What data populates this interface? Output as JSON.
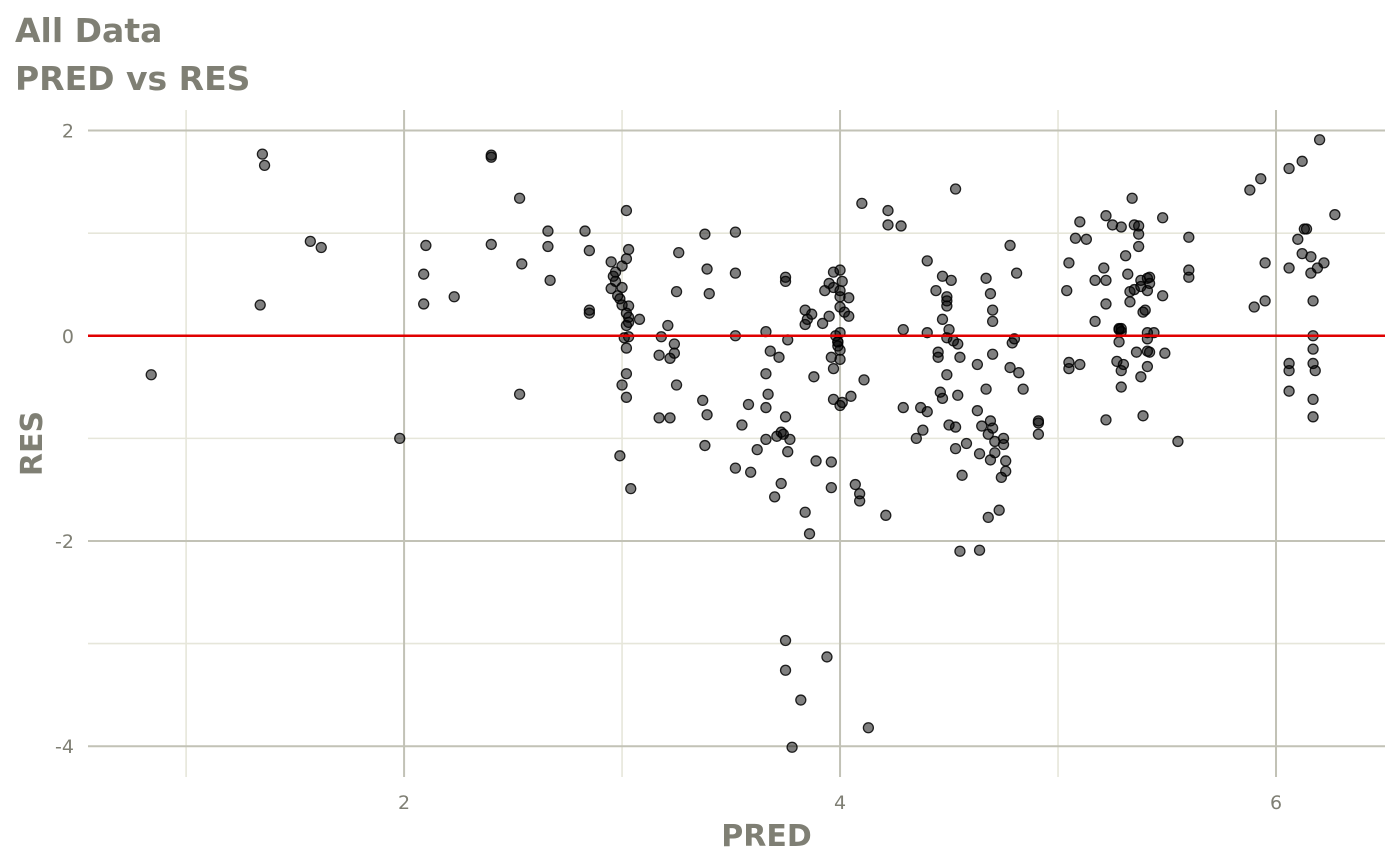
{
  "chart_data": {
    "type": "scatter",
    "title": "All Data",
    "subtitle": "PRED vs RES",
    "xlabel": "PRED",
    "ylabel": "RES",
    "xlim": [
      0.55,
      6.5
    ],
    "ylim": [
      -4.3,
      2.2
    ],
    "x_ticks": [
      2,
      4,
      6
    ],
    "x_tick_labels": [
      "2",
      "4",
      "6"
    ],
    "y_ticks": [
      -4,
      -2,
      0,
      2
    ],
    "y_tick_labels": [
      "-4",
      "-2",
      "0",
      "2"
    ],
    "grid": true,
    "reference_line": {
      "y": 0,
      "color": "#e00000"
    },
    "colors": {
      "point": "#000000",
      "grid_major": "#c2c2b6",
      "grid_minor": "#e6e6da",
      "text": "#7f7f74"
    },
    "points": [
      [
        0.84,
        -0.38
      ],
      [
        1.35,
        1.77
      ],
      [
        1.36,
        1.66
      ],
      [
        1.34,
        0.3
      ],
      [
        1.57,
        0.92
      ],
      [
        1.62,
        0.86
      ],
      [
        1.98,
        -1.0
      ],
      [
        2.09,
        0.6
      ],
      [
        2.1,
        0.88
      ],
      [
        2.09,
        0.31
      ],
      [
        2.23,
        0.38
      ],
      [
        2.4,
        1.76
      ],
      [
        2.4,
        1.74
      ],
      [
        2.4,
        0.89
      ],
      [
        2.53,
        1.34
      ],
      [
        2.53,
        -0.57
      ],
      [
        2.54,
        0.7
      ],
      [
        2.66,
        1.02
      ],
      [
        2.66,
        0.87
      ],
      [
        2.67,
        0.54
      ],
      [
        2.83,
        1.02
      ],
      [
        2.85,
        0.83
      ],
      [
        2.85,
        0.25
      ],
      [
        2.85,
        0.22
      ],
      [
        2.95,
        0.72
      ],
      [
        2.96,
        0.58
      ],
      [
        2.97,
        0.53
      ],
      [
        2.95,
        0.46
      ],
      [
        2.97,
        0.62
      ],
      [
        2.98,
        0.39
      ],
      [
        2.99,
        0.36
      ],
      [
        3.0,
        0.68
      ],
      [
        3.0,
        0.47
      ],
      [
        3.0,
        0.3
      ],
      [
        3.01,
        -0.02
      ],
      [
        3.0,
        -0.48
      ],
      [
        2.99,
        -1.17
      ],
      [
        3.02,
        1.22
      ],
      [
        3.03,
        0.84
      ],
      [
        3.02,
        0.75
      ],
      [
        3.03,
        0.29
      ],
      [
        3.02,
        0.22
      ],
      [
        3.03,
        0.18
      ],
      [
        3.03,
        0.13
      ],
      [
        3.02,
        0.1
      ],
      [
        3.03,
        -0.01
      ],
      [
        3.02,
        -0.12
      ],
      [
        3.02,
        -0.37
      ],
      [
        3.02,
        -0.6
      ],
      [
        3.04,
        -1.49
      ],
      [
        3.08,
        0.16
      ],
      [
        3.17,
        -0.19
      ],
      [
        3.18,
        -0.01
      ],
      [
        3.17,
        -0.8
      ],
      [
        3.21,
        0.1
      ],
      [
        3.22,
        -0.22
      ],
      [
        3.24,
        -0.17
      ],
      [
        3.24,
        -0.08
      ],
      [
        3.25,
        0.43
      ],
      [
        3.25,
        -0.48
      ],
      [
        3.26,
        0.81
      ],
      [
        3.22,
        -0.8
      ],
      [
        3.37,
        -0.63
      ],
      [
        3.38,
        0.99
      ],
      [
        3.39,
        0.65
      ],
      [
        3.4,
        0.41
      ],
      [
        3.39,
        -0.77
      ],
      [
        3.38,
        -1.07
      ],
      [
        3.52,
        1.01
      ],
      [
        3.52,
        0.61
      ],
      [
        3.52,
        0.0
      ],
      [
        3.52,
        -1.29
      ],
      [
        3.55,
        -0.87
      ],
      [
        3.58,
        -0.67
      ],
      [
        3.59,
        -1.33
      ],
      [
        3.62,
        -1.11
      ],
      [
        3.66,
        0.04
      ],
      [
        3.66,
        -0.37
      ],
      [
        3.66,
        -0.7
      ],
      [
        3.67,
        -0.57
      ],
      [
        3.66,
        -1.01
      ],
      [
        3.68,
        -0.15
      ],
      [
        3.7,
        -1.57
      ],
      [
        3.71,
        -0.98
      ],
      [
        3.72,
        -0.21
      ],
      [
        3.73,
        -0.94
      ],
      [
        3.74,
        -0.96
      ],
      [
        3.73,
        -1.44
      ],
      [
        3.75,
        0.57
      ],
      [
        3.75,
        0.53
      ],
      [
        3.76,
        -0.04
      ],
      [
        3.75,
        -0.79
      ],
      [
        3.76,
        -1.13
      ],
      [
        3.77,
        -1.01
      ],
      [
        3.75,
        -2.97
      ],
      [
        3.75,
        -3.26
      ],
      [
        3.78,
        -4.01
      ],
      [
        3.82,
        -3.55
      ],
      [
        3.84,
        0.25
      ],
      [
        3.84,
        0.11
      ],
      [
        3.85,
        0.16
      ],
      [
        3.87,
        0.21
      ],
      [
        3.84,
        -1.72
      ],
      [
        3.86,
        -1.93
      ],
      [
        3.88,
        -0.4
      ],
      [
        3.89,
        -1.22
      ],
      [
        3.92,
        0.12
      ],
      [
        3.93,
        0.44
      ],
      [
        3.94,
        -3.13
      ],
      [
        3.95,
        0.51
      ],
      [
        3.95,
        0.19
      ],
      [
        3.96,
        -0.21
      ],
      [
        3.96,
        -1.48
      ],
      [
        3.96,
        -1.23
      ],
      [
        3.97,
        0.62
      ],
      [
        3.97,
        0.47
      ],
      [
        3.97,
        -0.32
      ],
      [
        3.97,
        -0.62
      ],
      [
        3.98,
        0.0
      ],
      [
        3.99,
        -0.1
      ],
      [
        3.99,
        -0.06
      ],
      [
        3.99,
        -0.06
      ],
      [
        4.0,
        0.64
      ],
      [
        4.0,
        0.44
      ],
      [
        4.0,
        0.38
      ],
      [
        4.0,
        0.28
      ],
      [
        4.0,
        0.03
      ],
      [
        4.0,
        -0.14
      ],
      [
        4.0,
        -0.23
      ],
      [
        4.0,
        -0.68
      ],
      [
        4.01,
        0.53
      ],
      [
        4.01,
        -0.65
      ],
      [
        4.02,
        0.23
      ],
      [
        4.04,
        0.37
      ],
      [
        4.04,
        0.19
      ],
      [
        4.05,
        -0.59
      ],
      [
        4.07,
        -1.45
      ],
      [
        4.09,
        -1.54
      ],
      [
        4.09,
        -1.61
      ],
      [
        4.1,
        1.29
      ],
      [
        4.11,
        -0.43
      ],
      [
        4.13,
        -3.82
      ],
      [
        4.21,
        -1.75
      ],
      [
        4.22,
        1.22
      ],
      [
        4.22,
        1.08
      ],
      [
        4.28,
        1.07
      ],
      [
        4.29,
        0.06
      ],
      [
        4.29,
        -0.7
      ],
      [
        4.35,
        -1.0
      ],
      [
        4.37,
        -0.7
      ],
      [
        4.38,
        -0.92
      ],
      [
        4.4,
        0.73
      ],
      [
        4.4,
        0.03
      ],
      [
        4.4,
        -0.74
      ],
      [
        4.44,
        0.44
      ],
      [
        4.45,
        -0.16
      ],
      [
        4.45,
        -0.21
      ],
      [
        4.46,
        -0.55
      ],
      [
        4.47,
        0.58
      ],
      [
        4.47,
        0.16
      ],
      [
        4.47,
        -0.61
      ],
      [
        4.49,
        0.38
      ],
      [
        4.49,
        0.34
      ],
      [
        4.49,
        0.29
      ],
      [
        4.49,
        -0.02
      ],
      [
        4.49,
        -0.38
      ],
      [
        4.5,
        0.06
      ],
      [
        4.5,
        -0.87
      ],
      [
        4.51,
        0.54
      ],
      [
        4.52,
        -0.05
      ],
      [
        4.53,
        1.43
      ],
      [
        4.53,
        -0.89
      ],
      [
        4.53,
        -1.1
      ],
      [
        4.54,
        -0.08
      ],
      [
        4.54,
        -0.58
      ],
      [
        4.55,
        -0.21
      ],
      [
        4.55,
        -2.1
      ],
      [
        4.56,
        -1.36
      ],
      [
        4.58,
        -1.05
      ],
      [
        4.63,
        -0.28
      ],
      [
        4.63,
        -0.73
      ],
      [
        4.64,
        -1.15
      ],
      [
        4.64,
        -2.09
      ],
      [
        4.65,
        -0.88
      ],
      [
        4.67,
        0.56
      ],
      [
        4.67,
        -0.52
      ],
      [
        4.68,
        -0.96
      ],
      [
        4.68,
        -1.77
      ],
      [
        4.69,
        0.41
      ],
      [
        4.69,
        -0.83
      ],
      [
        4.69,
        -1.21
      ],
      [
        4.7,
        0.25
      ],
      [
        4.7,
        0.14
      ],
      [
        4.7,
        -0.18
      ],
      [
        4.7,
        -0.9
      ],
      [
        4.71,
        -1.14
      ],
      [
        4.71,
        -1.03
      ],
      [
        4.73,
        -1.7
      ],
      [
        4.74,
        -1.38
      ],
      [
        4.75,
        -1.0
      ],
      [
        4.75,
        -1.06
      ],
      [
        4.76,
        -1.22
      ],
      [
        4.76,
        -1.32
      ],
      [
        4.78,
        0.88
      ],
      [
        4.78,
        -0.31
      ],
      [
        4.79,
        -0.07
      ],
      [
        4.8,
        -0.03
      ],
      [
        4.81,
        0.61
      ],
      [
        4.82,
        -0.36
      ],
      [
        4.84,
        -0.52
      ],
      [
        4.91,
        -0.83
      ],
      [
        4.91,
        -0.85
      ],
      [
        4.91,
        -0.96
      ],
      [
        5.04,
        0.44
      ],
      [
        5.05,
        0.71
      ],
      [
        5.05,
        -0.26
      ],
      [
        5.05,
        -0.32
      ],
      [
        5.08,
        0.95
      ],
      [
        5.1,
        1.11
      ],
      [
        5.1,
        -0.28
      ],
      [
        5.13,
        0.94
      ],
      [
        5.17,
        0.54
      ],
      [
        5.17,
        0.14
      ],
      [
        5.21,
        0.66
      ],
      [
        5.22,
        1.17
      ],
      [
        5.22,
        0.54
      ],
      [
        5.22,
        0.31
      ],
      [
        5.22,
        -0.82
      ],
      [
        5.25,
        1.08
      ],
      [
        5.27,
        -0.25
      ],
      [
        5.28,
        0.07
      ],
      [
        5.28,
        0.06
      ],
      [
        5.28,
        -0.06
      ],
      [
        5.29,
        1.06
      ],
      [
        5.29,
        0.07
      ],
      [
        5.29,
        0.04
      ],
      [
        5.29,
        -0.34
      ],
      [
        5.29,
        -0.5
      ],
      [
        5.3,
        -0.28
      ],
      [
        5.31,
        0.78
      ],
      [
        5.32,
        0.6
      ],
      [
        5.33,
        0.43
      ],
      [
        5.33,
        0.33
      ],
      [
        5.34,
        1.34
      ],
      [
        5.35,
        0.45
      ],
      [
        5.35,
        1.08
      ],
      [
        5.36,
        -0.16
      ],
      [
        5.37,
        1.07
      ],
      [
        5.37,
        0.99
      ],
      [
        5.37,
        0.87
      ],
      [
        5.38,
        0.54
      ],
      [
        5.38,
        0.48
      ],
      [
        5.38,
        -0.4
      ],
      [
        5.39,
        -0.78
      ],
      [
        5.39,
        0.23
      ],
      [
        5.4,
        0.25
      ],
      [
        5.41,
        0.56
      ],
      [
        5.41,
        0.44
      ],
      [
        5.41,
        0.03
      ],
      [
        5.41,
        -0.03
      ],
      [
        5.41,
        -0.15
      ],
      [
        5.41,
        -0.3
      ],
      [
        5.42,
        0.57
      ],
      [
        5.42,
        0.51
      ],
      [
        5.42,
        -0.16
      ],
      [
        5.44,
        0.03
      ],
      [
        5.48,
        1.15
      ],
      [
        5.48,
        0.39
      ],
      [
        5.49,
        -0.17
      ],
      [
        5.55,
        -1.03
      ],
      [
        5.6,
        0.96
      ],
      [
        5.6,
        0.64
      ],
      [
        5.6,
        0.57
      ],
      [
        5.88,
        1.42
      ],
      [
        5.9,
        0.28
      ],
      [
        5.93,
        1.53
      ],
      [
        5.95,
        0.71
      ],
      [
        5.95,
        0.34
      ],
      [
        6.06,
        1.63
      ],
      [
        6.06,
        0.66
      ],
      [
        6.06,
        -0.27
      ],
      [
        6.06,
        -0.34
      ],
      [
        6.06,
        -0.54
      ],
      [
        6.1,
        0.94
      ],
      [
        6.12,
        1.7
      ],
      [
        6.12,
        0.8
      ],
      [
        6.13,
        1.04
      ],
      [
        6.14,
        1.04
      ],
      [
        6.16,
        0.77
      ],
      [
        6.16,
        0.61
      ],
      [
        6.17,
        0.34
      ],
      [
        6.17,
        0.0
      ],
      [
        6.17,
        -0.13
      ],
      [
        6.17,
        -0.62
      ],
      [
        6.17,
        -0.79
      ],
      [
        6.17,
        -0.27
      ],
      [
        6.18,
        -0.34
      ],
      [
        6.19,
        0.66
      ],
      [
        6.2,
        1.91
      ],
      [
        6.22,
        0.71
      ],
      [
        6.27,
        1.18
      ]
    ]
  }
}
